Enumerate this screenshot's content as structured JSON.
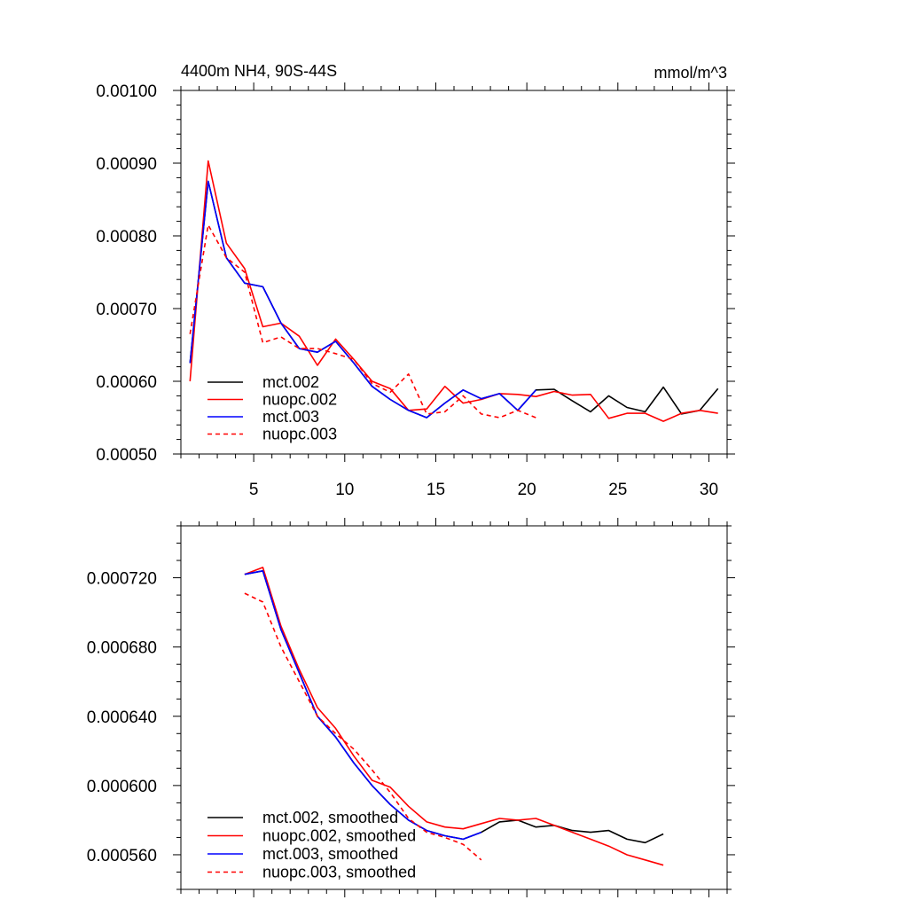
{
  "chart_data": [
    {
      "type": "line",
      "title": "4400m NH4, 90S-44S",
      "units": "mmol/m^3",
      "xlim": [
        1,
        31
      ],
      "ylim": [
        0.0005,
        0.001
      ],
      "xticks": [
        5,
        10,
        15,
        20,
        25,
        30
      ],
      "xtick_labels": [
        "5",
        "10",
        "15",
        "20",
        "25",
        "30"
      ],
      "yticks": [
        0.0005,
        0.0006,
        0.0007,
        0.0008,
        0.0009,
        0.001
      ],
      "ytick_labels": [
        "0.00050",
        "0.00060",
        "0.00070",
        "0.00080",
        "0.00090",
        "0.00100"
      ],
      "legend_position": "bottom-left",
      "series": [
        {
          "name": "mct.002",
          "color": "#000000",
          "dash": "solid",
          "x": [
            1.5,
            2.5,
            3.5,
            4.5,
            5.5,
            6.5,
            7.5,
            8.5,
            9.5,
            10.5,
            11.5,
            12.5,
            13.5,
            14.5,
            15.5,
            16.5,
            17.5,
            18.5,
            19.5,
            20.5,
            21.5,
            22.5,
            23.5,
            24.5,
            25.5,
            26.5,
            27.5,
            28.5,
            29.5,
            30.5
          ],
          "y": [
            0.000625,
            0.000875,
            0.00077,
            0.000735,
            0.00073,
            0.00068,
            0.000645,
            0.00064,
            0.000655,
            0.000625,
            0.000593,
            0.000575,
            0.00056,
            0.00055,
            0.00057,
            0.000588,
            0.000576,
            0.000583,
            0.00056,
            0.000588,
            0.000589,
            0.000573,
            0.000558,
            0.00058,
            0.000564,
            0.000558,
            0.000592,
            0.000555,
            0.00056,
            0.00059
          ]
        },
        {
          "name": "nuopc.002",
          "color": "#ff0000",
          "dash": "solid",
          "x": [
            1.5,
            2.5,
            3.5,
            4.5,
            5.5,
            6.5,
            7.5,
            8.5,
            9.5,
            10.5,
            11.5,
            12.5,
            13.5,
            14.5,
            15.5,
            16.5,
            17.5,
            18.5,
            19.5,
            20.5,
            21.5,
            22.5,
            23.5,
            24.5,
            25.5,
            26.5,
            27.5,
            28.5,
            29.5,
            30.5
          ],
          "y": [
            0.0006,
            0.000903,
            0.00079,
            0.000755,
            0.000675,
            0.00068,
            0.000662,
            0.000622,
            0.000658,
            0.00063,
            0.0006,
            0.00059,
            0.00056,
            0.000562,
            0.000593,
            0.00057,
            0.000575,
            0.000583,
            0.000582,
            0.000579,
            0.000586,
            0.000581,
            0.000582,
            0.000549,
            0.000556,
            0.000556,
            0.000545,
            0.000556,
            0.00056,
            0.000556
          ]
        },
        {
          "name": "mct.003",
          "color": "#0000ff",
          "dash": "solid",
          "x": [
            1.5,
            2.5,
            3.5,
            4.5,
            5.5,
            6.5,
            7.5,
            8.5,
            9.5,
            10.5,
            11.5,
            12.5,
            13.5,
            14.5,
            15.5,
            16.5,
            17.5,
            18.5,
            19.5,
            20.5
          ],
          "y": [
            0.000625,
            0.000875,
            0.00077,
            0.000735,
            0.00073,
            0.00068,
            0.000645,
            0.00064,
            0.000655,
            0.000625,
            0.000593,
            0.000575,
            0.00056,
            0.00055,
            0.00057,
            0.000588,
            0.000576,
            0.000583,
            0.00056,
            0.000588
          ]
        },
        {
          "name": "nuopc.003",
          "color": "#ff0000",
          "dash": "dashed",
          "x": [
            1.5,
            2.5,
            3.5,
            4.5,
            5.5,
            6.5,
            7.5,
            8.5,
            9.5,
            10.5,
            11.5,
            12.5,
            13.5,
            14.5,
            15.5,
            16.5,
            17.5,
            18.5,
            19.5,
            20.5
          ],
          "y": [
            0.000665,
            0.000815,
            0.00077,
            0.00075,
            0.000653,
            0.000661,
            0.000645,
            0.000645,
            0.000638,
            0.00063,
            0.000597,
            0.000585,
            0.00061,
            0.000555,
            0.000558,
            0.00058,
            0.000555,
            0.00055,
            0.00056,
            0.00055
          ]
        }
      ]
    },
    {
      "type": "line",
      "title": "",
      "xlim": [
        1,
        31
      ],
      "ylim": [
        0.00054,
        0.00075
      ],
      "xticks": [
        5,
        10,
        15,
        20,
        25,
        30
      ],
      "xtick_labels": [],
      "yticks": [
        0.00056,
        0.0006,
        0.00064,
        0.00068,
        0.00072
      ],
      "ytick_labels": [
        "0.000560",
        "0.000600",
        "0.000640",
        "0.000680",
        "0.000720"
      ],
      "legend_position": "bottom-left",
      "series": [
        {
          "name": "mct.002, smoothed",
          "color": "#000000",
          "dash": "solid",
          "x": [
            4.5,
            5.5,
            6.5,
            7.5,
            8.5,
            9.5,
            10.5,
            11.5,
            12.5,
            13.5,
            14.5,
            15.5,
            16.5,
            17.5,
            18.5,
            19.5,
            20.5,
            21.5,
            22.5,
            23.5,
            24.5,
            25.5,
            26.5,
            27.5
          ],
          "y": [
            0.000722,
            0.000724,
            0.00069,
            0.000665,
            0.00064,
            0.000628,
            0.000613,
            0.0006,
            0.000589,
            0.00058,
            0.000574,
            0.000571,
            0.000569,
            0.000573,
            0.000579,
            0.00058,
            0.000576,
            0.000577,
            0.000574,
            0.000573,
            0.000574,
            0.000569,
            0.000567,
            0.000572
          ]
        },
        {
          "name": "nuopc.002, smoothed",
          "color": "#ff0000",
          "dash": "solid",
          "x": [
            4.5,
            5.5,
            6.5,
            7.5,
            8.5,
            9.5,
            10.5,
            11.5,
            12.5,
            13.5,
            14.5,
            15.5,
            16.5,
            17.5,
            18.5,
            19.5,
            20.5,
            21.5,
            22.5,
            23.5,
            24.5,
            25.5,
            26.5,
            27.5
          ],
          "y": [
            0.000722,
            0.000726,
            0.000692,
            0.000667,
            0.000645,
            0.000633,
            0.000617,
            0.000603,
            0.000599,
            0.000588,
            0.000579,
            0.000576,
            0.000575,
            0.000578,
            0.000581,
            0.00058,
            0.000581,
            0.000577,
            0.000573,
            0.000569,
            0.000565,
            0.00056,
            0.000557,
            0.000554
          ]
        },
        {
          "name": "mct.003, smoothed",
          "color": "#0000ff",
          "dash": "solid",
          "x": [
            4.5,
            5.5,
            6.5,
            7.5,
            8.5,
            9.5,
            10.5,
            11.5,
            12.5,
            13.5,
            14.5,
            15.5,
            16.5,
            17.5
          ],
          "y": [
            0.000722,
            0.000724,
            0.00069,
            0.000665,
            0.00064,
            0.000628,
            0.000613,
            0.0006,
            0.000589,
            0.00058,
            0.000574,
            0.000571,
            0.000569,
            0.000573
          ]
        },
        {
          "name": "nuopc.003, smoothed",
          "color": "#ff0000",
          "dash": "dashed",
          "x": [
            4.5,
            5.5,
            6.5,
            7.5,
            8.5,
            9.5,
            10.5,
            11.5,
            12.5,
            13.5,
            14.5,
            15.5,
            16.5,
            17.5
          ],
          "y": [
            0.000711,
            0.000706,
            0.00068,
            0.00066,
            0.00064,
            0.00063,
            0.000621,
            0.000609,
            0.000596,
            0.000581,
            0.000573,
            0.00057,
            0.000566,
            0.000557
          ]
        }
      ]
    }
  ]
}
